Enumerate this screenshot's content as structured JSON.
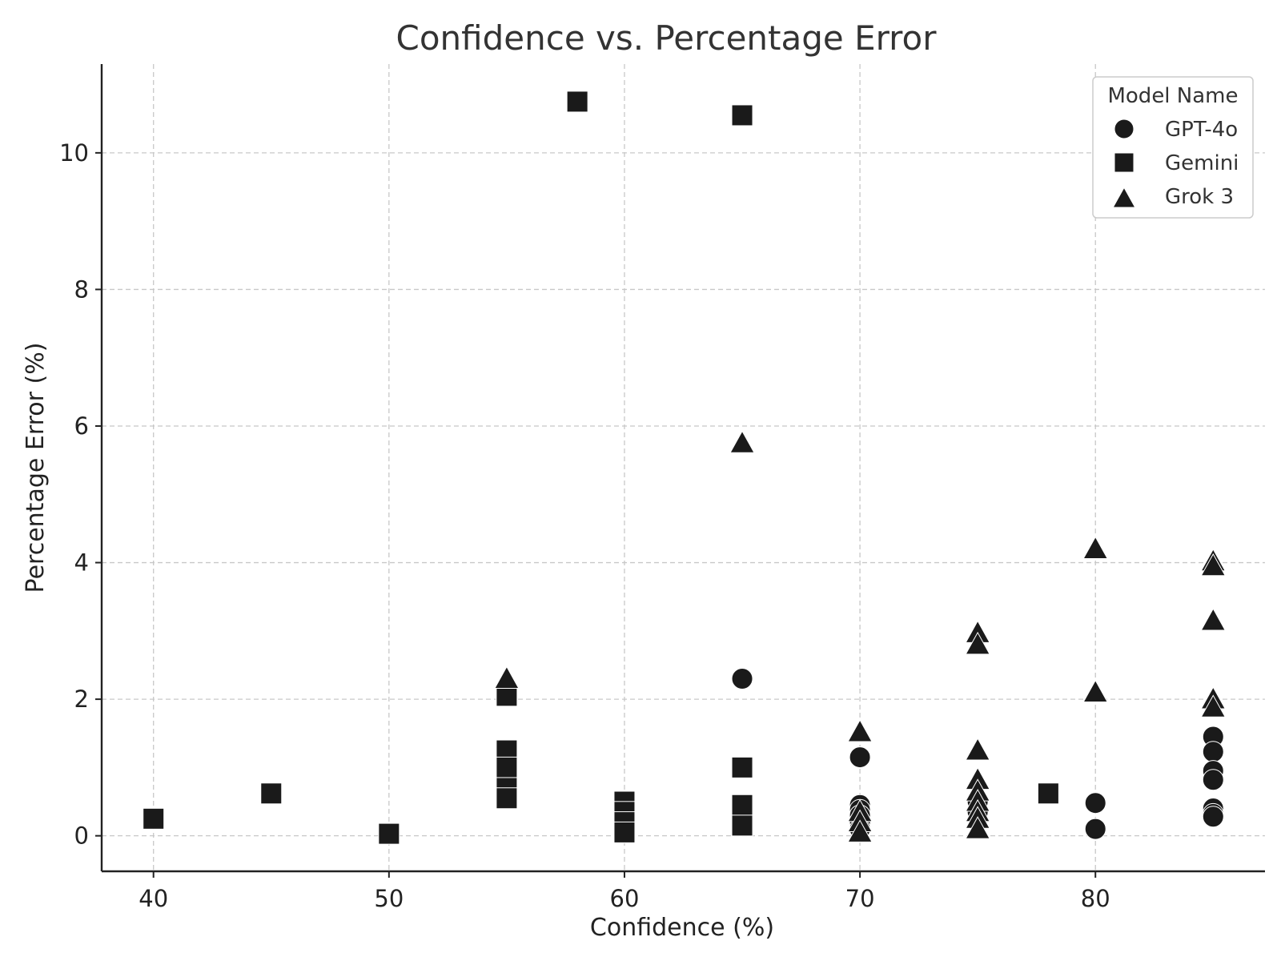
{
  "chart_data": {
    "type": "scatter",
    "title": "Confidence vs. Percentage Error",
    "xlabel": "Confidence (%)",
    "ylabel": "Percentage Error (%)",
    "xlim": [
      37.8,
      87.2
    ],
    "ylim": [
      -0.52,
      11.3
    ],
    "xticks": [
      40,
      50,
      60,
      70,
      80
    ],
    "yticks": [
      0,
      2,
      4,
      6,
      8,
      10
    ],
    "grid": true,
    "legend": {
      "title": "Model Name",
      "placement": "top-right"
    },
    "series": [
      {
        "name": "GPT-4o",
        "marker": "circle",
        "color": "#1a1a1a",
        "points": [
          [
            65,
            2.3
          ],
          [
            70,
            1.15
          ],
          [
            70,
            0.45
          ],
          [
            70,
            0.38
          ],
          [
            70,
            0.3
          ],
          [
            70,
            0.2
          ],
          [
            70,
            0.1
          ],
          [
            75,
            0.5
          ],
          [
            75,
            0.35
          ],
          [
            80,
            0.48
          ],
          [
            80,
            0.1
          ],
          [
            85,
            1.45
          ],
          [
            85,
            1.23
          ],
          [
            85,
            0.95
          ],
          [
            85,
            0.82
          ],
          [
            85,
            0.4
          ],
          [
            85,
            0.32
          ],
          [
            85,
            0.28
          ]
        ]
      },
      {
        "name": "Gemini",
        "marker": "square",
        "color": "#1a1a1a",
        "points": [
          [
            40,
            0.25
          ],
          [
            45,
            0.62
          ],
          [
            50,
            0.03
          ],
          [
            55,
            2.05
          ],
          [
            55,
            1.25
          ],
          [
            55,
            1.0
          ],
          [
            55,
            0.7
          ],
          [
            55,
            0.55
          ],
          [
            58,
            10.75
          ],
          [
            60,
            0.5
          ],
          [
            60,
            0.35
          ],
          [
            60,
            0.2
          ],
          [
            60,
            0.05
          ],
          [
            65,
            10.55
          ],
          [
            65,
            1.0
          ],
          [
            65,
            0.45
          ],
          [
            65,
            0.15
          ],
          [
            78,
            0.62
          ]
        ]
      },
      {
        "name": "Grok 3",
        "marker": "triangle",
        "color": "#1a1a1a",
        "points": [
          [
            55,
            2.3
          ],
          [
            65,
            5.75
          ],
          [
            70,
            1.52
          ],
          [
            70,
            0.35
          ],
          [
            70,
            0.2
          ],
          [
            70,
            0.05
          ],
          [
            75,
            2.97
          ],
          [
            75,
            2.8
          ],
          [
            75,
            1.25
          ],
          [
            75,
            0.82
          ],
          [
            75,
            0.65
          ],
          [
            75,
            0.5
          ],
          [
            75,
            0.35
          ],
          [
            75,
            0.25
          ],
          [
            75,
            0.1
          ],
          [
            80,
            4.2
          ],
          [
            80,
            2.1
          ],
          [
            85,
            4.02
          ],
          [
            85,
            3.95
          ],
          [
            85,
            3.15
          ],
          [
            85,
            2.0
          ],
          [
            85,
            1.88
          ]
        ]
      }
    ]
  }
}
